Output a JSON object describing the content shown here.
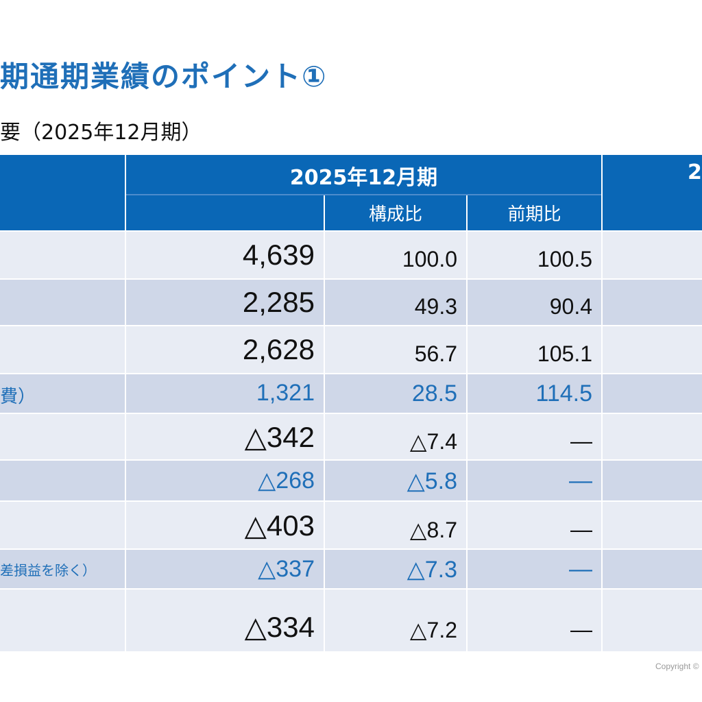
{
  "title": "期通期業績のポイント①",
  "subtitle": "要（2025年12月期）",
  "header": {
    "period": "2025年12月期",
    "period_next": "2",
    "col_composition": "構成比",
    "col_yoy": "前期比"
  },
  "rows": [
    {
      "label": "",
      "value": "4,639",
      "composition": "100.0",
      "yoy": "100.5",
      "highlight": false
    },
    {
      "label": "",
      "value": "2,285",
      "composition": "49.3",
      "yoy": "90.4",
      "highlight": false
    },
    {
      "label": "",
      "value": "2,628",
      "composition": "56.7",
      "yoy": "105.1",
      "highlight": false
    },
    {
      "label": "費）",
      "value": "1,321",
      "composition": "28.5",
      "yoy": "114.5",
      "highlight": true
    },
    {
      "label": "",
      "value": "△342",
      "composition": "△7.4",
      "yoy": "—",
      "highlight": false
    },
    {
      "label": "",
      "value": "△268",
      "composition": "△5.8",
      "yoy": "—",
      "highlight": true
    },
    {
      "label": "",
      "value": "△403",
      "composition": "△8.7",
      "yoy": "—",
      "highlight": false
    },
    {
      "label": "差損益を除く）",
      "value": "△337",
      "composition": "△7.3",
      "yoy": "—",
      "highlight": true
    },
    {
      "label": "",
      "value": "△334",
      "composition": "△7.2",
      "yoy": "—",
      "highlight": false
    }
  ],
  "copyright": "Copyright ©",
  "colors": {
    "header_bg": "#0a67b6",
    "accent_text": "#1f6fb8",
    "row_light": "#e8ecf4",
    "row_dark": "#cfd7e8"
  }
}
